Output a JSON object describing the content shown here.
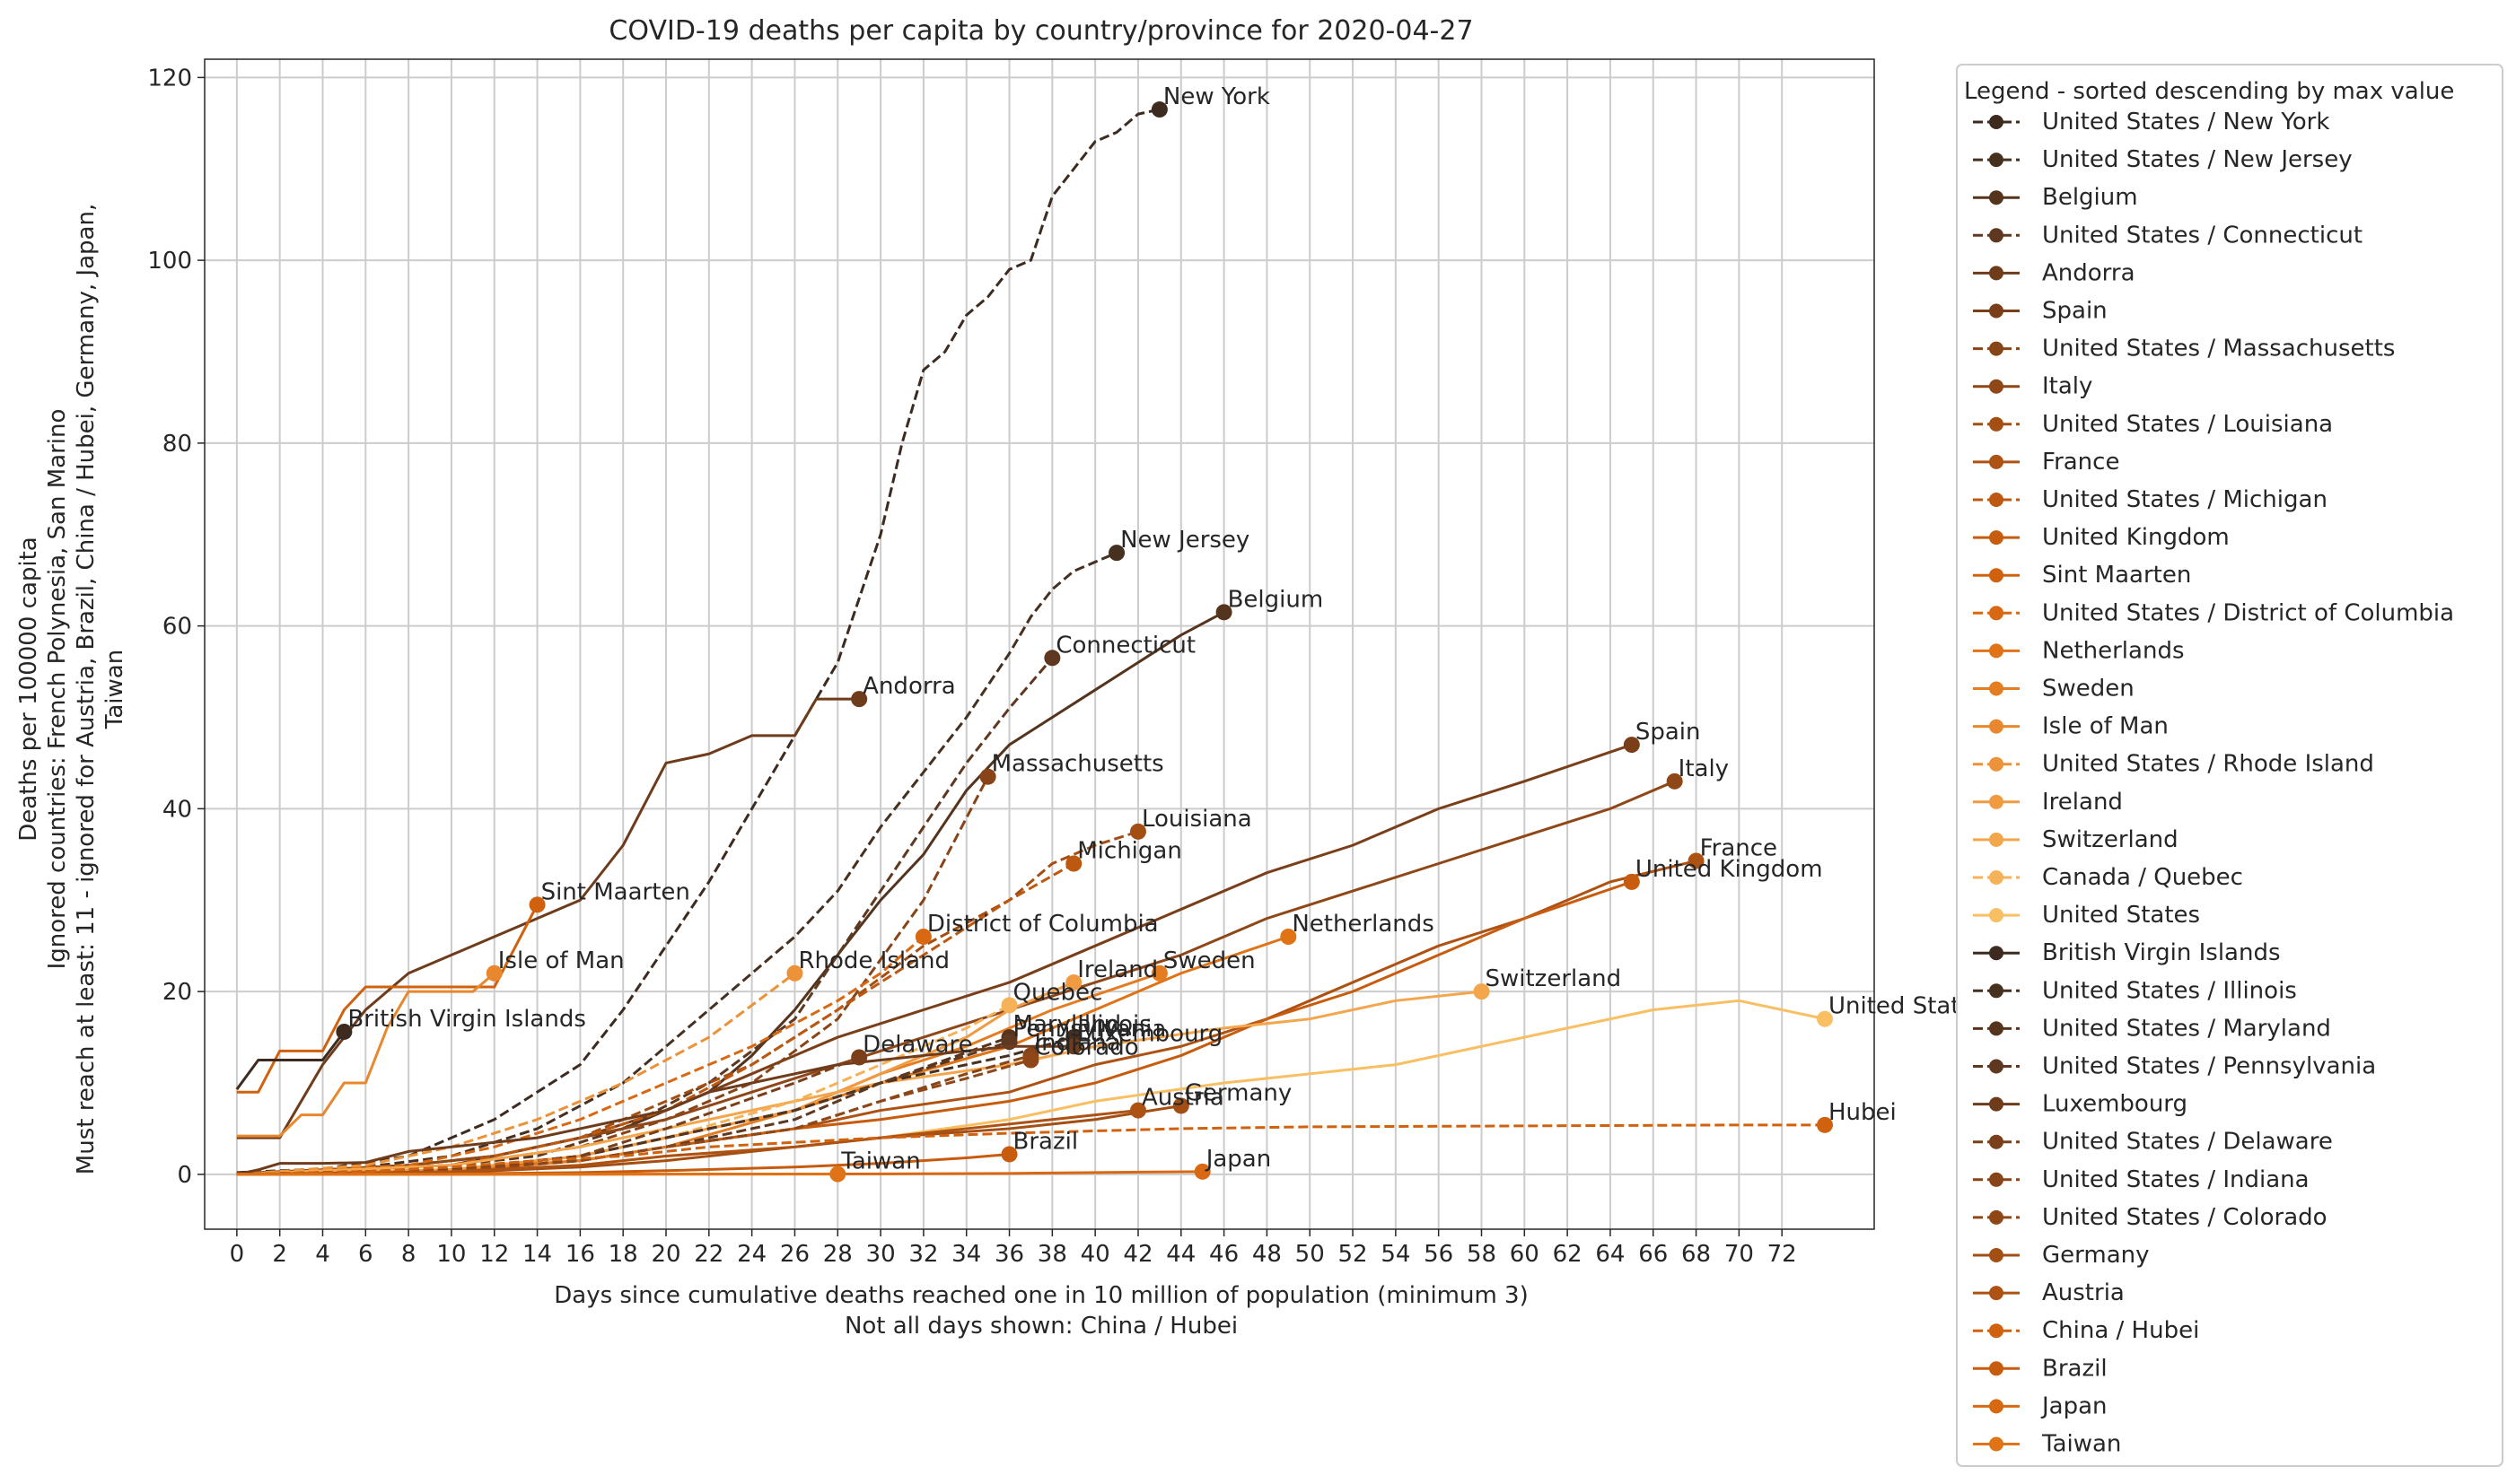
{
  "chart_data": {
    "type": "line",
    "title": "COVID-19 deaths per capita by country/province for 2020-04-27",
    "xlabel_lines": [
      "Days since cumulative deaths reached one in 10 million of population (minimum 3)",
      "Not all days shown: China / Hubei"
    ],
    "ylabel_lines": [
      "Deaths per 100000 capita",
      "Ignored countries: French Polynesia, San Marino",
      "Must reach at least: 11 - ignored for Austria, Brazil, China / Hubei, Germany, Japan,",
      "Taiwan"
    ],
    "xlim": [
      -1.5,
      76.3
    ],
    "ylim": [
      -6,
      122
    ],
    "x_ticks": [
      0,
      2,
      4,
      6,
      8,
      10,
      12,
      14,
      16,
      18,
      20,
      22,
      24,
      26,
      28,
      30,
      32,
      34,
      36,
      38,
      40,
      42,
      44,
      46,
      48,
      50,
      52,
      54,
      56,
      58,
      60,
      62,
      64,
      66,
      68,
      70,
      72
    ],
    "y_ticks": [
      0,
      20,
      40,
      60,
      80,
      100,
      120
    ],
    "grid": true,
    "legend_title": "Legend - sorted descending by max value",
    "legend_position": "outside right",
    "series": [
      {
        "name": "United States / New York",
        "label": "New York",
        "color": "#3d2b20",
        "dash": true,
        "x": [
          0,
          4,
          8,
          12,
          16,
          18,
          20,
          22,
          24,
          26,
          28,
          30,
          31,
          32,
          33,
          34,
          35,
          36,
          37,
          38,
          39,
          40,
          41,
          42,
          43
        ],
        "y": [
          0.2,
          0.6,
          2,
          6,
          12,
          18,
          25,
          32,
          40,
          48,
          56,
          70,
          80,
          88,
          90,
          94,
          96,
          99,
          100,
          107,
          110,
          113,
          114,
          116,
          116.5
        ]
      },
      {
        "name": "United States / New Jersey",
        "label": "New Jersey",
        "color": "#463020",
        "dash": true,
        "x": [
          0,
          6,
          10,
          14,
          18,
          22,
          26,
          28,
          30,
          32,
          34,
          36,
          37,
          38,
          39,
          40,
          41
        ],
        "y": [
          0.1,
          0.8,
          2,
          5,
          10,
          18,
          26,
          31,
          38,
          44,
          50,
          57,
          61,
          64,
          66,
          67,
          68
        ]
      },
      {
        "name": "Belgium",
        "label": "Belgium",
        "color": "#55341e",
        "dash": false,
        "x": [
          0,
          10,
          14,
          18,
          22,
          24,
          26,
          28,
          30,
          32,
          34,
          36,
          38,
          40,
          42,
          44,
          46
        ],
        "y": [
          0,
          1,
          3,
          5,
          9,
          13,
          18,
          24,
          30,
          35,
          42,
          47,
          50,
          53,
          56,
          59,
          61.5
        ]
      },
      {
        "name": "United States / Connecticut",
        "label": "Connecticut",
        "color": "#5e3820",
        "dash": true,
        "x": [
          0,
          8,
          14,
          18,
          22,
          26,
          28,
          30,
          32,
          34,
          36,
          38
        ],
        "y": [
          0,
          0.5,
          2,
          5,
          10,
          17,
          24,
          31,
          38,
          45,
          51,
          56.5
        ]
      },
      {
        "name": "Andorra",
        "label": "Andorra",
        "color": "#6e3b1b",
        "dash": false,
        "x": [
          0,
          2,
          4,
          6,
          8,
          10,
          12,
          14,
          16,
          18,
          20,
          22,
          24,
          26,
          27,
          28,
          29
        ],
        "y": [
          4,
          4,
          12,
          18,
          22,
          24,
          26,
          28,
          30,
          36,
          45,
          46,
          48,
          48,
          52,
          52,
          52
        ]
      },
      {
        "name": "Spain",
        "label": "Spain",
        "color": "#7a3f19",
        "dash": false,
        "x": [
          0,
          8,
          12,
          16,
          20,
          24,
          28,
          32,
          36,
          40,
          44,
          48,
          52,
          56,
          60,
          65
        ],
        "y": [
          0,
          1,
          2,
          4,
          7,
          11,
          15,
          18,
          21,
          25,
          29,
          33,
          36,
          40,
          43,
          47
        ]
      },
      {
        "name": "United States / Massachusetts",
        "label": "Massachusetts",
        "color": "#874418",
        "dash": true,
        "x": [
          0,
          10,
          16,
          20,
          24,
          28,
          32,
          35
        ],
        "y": [
          0,
          1,
          3,
          6,
          10,
          17,
          30,
          43.5
        ]
      },
      {
        "name": "Italy",
        "label": "Italy",
        "color": "#8f4717",
        "dash": false,
        "x": [
          0,
          4,
          8,
          12,
          16,
          20,
          24,
          28,
          32,
          36,
          40,
          44,
          48,
          52,
          56,
          60,
          64,
          67
        ],
        "y": [
          0.1,
          0.5,
          1,
          2,
          4,
          6,
          9,
          12,
          15,
          18,
          21,
          24,
          28,
          31,
          34,
          37,
          40,
          43
        ]
      },
      {
        "name": "United States / Louisiana",
        "label": "Louisiana",
        "color": "#a34f14",
        "dash": true,
        "x": [
          0,
          10,
          16,
          20,
          24,
          28,
          32,
          36,
          38,
          40,
          42
        ],
        "y": [
          0,
          1,
          4,
          8,
          12,
          18,
          25,
          30,
          34,
          36,
          37.5
        ]
      },
      {
        "name": "France",
        "label": "France",
        "color": "#ad5213",
        "dash": false,
        "x": [
          0,
          10,
          16,
          20,
          26,
          30,
          36,
          40,
          44,
          48,
          52,
          56,
          60,
          64,
          68
        ],
        "y": [
          0,
          0.5,
          1.5,
          3,
          5,
          7,
          9,
          12,
          14,
          17,
          21,
          25,
          28,
          32,
          34.3
        ]
      },
      {
        "name": "United States / Michigan",
        "label": "Michigan",
        "color": "#bc5810",
        "dash": true,
        "x": [
          0,
          10,
          16,
          20,
          24,
          28,
          32,
          36,
          39
        ],
        "y": [
          0,
          1,
          4,
          7,
          12,
          18,
          24,
          30,
          34
        ]
      },
      {
        "name": "United Kingdom",
        "label": "United Kingdom",
        "color": "#c75c0e",
        "dash": false,
        "x": [
          0,
          10,
          16,
          20,
          26,
          30,
          36,
          40,
          44,
          48,
          52,
          56,
          60,
          65
        ],
        "y": [
          0,
          0.5,
          1.5,
          3,
          5,
          6,
          8,
          10,
          13,
          17,
          20,
          24,
          28,
          32
        ]
      },
      {
        "name": "Sint Maarten",
        "label": "Sint Maarten",
        "color": "#d0610f",
        "dash": false,
        "x": [
          0,
          1,
          2,
          3,
          4,
          5,
          6,
          7,
          8,
          9,
          10,
          11,
          12,
          13,
          14
        ],
        "y": [
          9,
          9,
          13.5,
          13.5,
          13.5,
          18,
          20.5,
          20.5,
          20.5,
          20.5,
          20.5,
          20.5,
          20.5,
          25,
          29.5
        ]
      },
      {
        "name": "United States / District of Columbia",
        "label": "District of Columbia",
        "color": "#d86812",
        "dash": true,
        "x": [
          0,
          8,
          12,
          16,
          20,
          24,
          28,
          30,
          32
        ],
        "y": [
          0,
          1,
          3,
          6,
          10,
          14,
          19,
          22,
          26
        ]
      },
      {
        "name": "Netherlands",
        "label": "Netherlands",
        "color": "#e07316",
        "dash": false,
        "x": [
          0,
          10,
          16,
          20,
          26,
          30,
          36,
          40,
          44,
          49
        ],
        "y": [
          0,
          0.5,
          2,
          4,
          7,
          10,
          14,
          18,
          22,
          26
        ]
      },
      {
        "name": "Sweden",
        "label": "Sweden",
        "color": "#e47d21",
        "dash": false,
        "x": [
          0,
          10,
          16,
          20,
          26,
          30,
          34,
          38,
          43
        ],
        "y": [
          0,
          0.3,
          1.5,
          3,
          7,
          11,
          14,
          18,
          22
        ]
      },
      {
        "name": "Isle of Man",
        "label": "Isle of Man",
        "color": "#e8872d",
        "dash": false,
        "x": [
          0,
          1,
          2,
          3,
          4,
          5,
          6,
          7,
          8,
          9,
          10,
          11,
          12
        ],
        "y": [
          4.2,
          4.2,
          4.2,
          6.5,
          6.5,
          10,
          10,
          16,
          20,
          20,
          20,
          20,
          22
        ]
      },
      {
        "name": "United States / Rhode Island",
        "label": "Rhode Island",
        "color": "#ec9238",
        "dash": true,
        "x": [
          0,
          6,
          10,
          14,
          18,
          22,
          26
        ],
        "y": [
          0,
          1,
          3,
          6,
          10,
          15,
          22
        ]
      },
      {
        "name": "Ireland",
        "label": "Ireland",
        "color": "#f09b42",
        "dash": false,
        "x": [
          0,
          10,
          16,
          20,
          26,
          30,
          34,
          36,
          39
        ],
        "y": [
          0,
          0.5,
          2,
          4,
          7,
          11,
          15,
          18,
          21
        ]
      },
      {
        "name": "Switzerland",
        "label": "Switzerland",
        "color": "#f3a64c",
        "dash": false,
        "x": [
          0,
          10,
          16,
          20,
          26,
          30,
          36,
          40,
          46,
          50,
          54,
          58
        ],
        "y": [
          0,
          1,
          3,
          5,
          8,
          10,
          12,
          14,
          16,
          17,
          19,
          20
        ]
      },
      {
        "name": "Canada / Quebec",
        "label": "Quebec",
        "color": "#f6b258",
        "dash": true,
        "x": [
          0,
          10,
          16,
          20,
          26,
          30,
          34,
          36
        ],
        "y": [
          0,
          0.5,
          2,
          4,
          8,
          12,
          16,
          18.5
        ]
      },
      {
        "name": "United States",
        "label": "United States",
        "color": "#f8bf63",
        "dash": false,
        "x": [
          0,
          10,
          16,
          20,
          26,
          30,
          36,
          40,
          46,
          50,
          54,
          58,
          62,
          66,
          70,
          74
        ],
        "y": [
          0,
          0.2,
          1,
          2,
          3,
          4,
          6,
          8,
          10,
          11,
          12,
          14,
          16,
          18,
          19,
          17
        ]
      },
      {
        "name": "British Virgin Islands",
        "label": "British Virgin Islands",
        "color": "#3d2b20",
        "dash": false,
        "x": [
          0,
          1,
          2,
          3,
          4,
          5
        ],
        "y": [
          9.3,
          12.5,
          12.5,
          12.5,
          12.5,
          15.6
        ]
      },
      {
        "name": "United States / Illinois",
        "label": "Illinois",
        "color": "#463020",
        "dash": true,
        "x": [
          0,
          10,
          16,
          20,
          26,
          30,
          36,
          39
        ],
        "y": [
          0,
          0.5,
          2,
          4,
          7,
          10,
          13,
          15
        ]
      },
      {
        "name": "United States / Maryland",
        "label": "Maryland",
        "color": "#55341e",
        "dash": true,
        "x": [
          0,
          10,
          16,
          20,
          26,
          30,
          36
        ],
        "y": [
          0,
          0.5,
          2,
          4,
          7,
          10,
          15
        ]
      },
      {
        "name": "United States / Pennsylvania",
        "label": "Pennsylvania",
        "color": "#5e3820",
        "dash": true,
        "x": [
          0,
          10,
          16,
          20,
          26,
          30,
          34,
          36
        ],
        "y": [
          0,
          0.4,
          1.5,
          3,
          6,
          10,
          13,
          14.5
        ]
      },
      {
        "name": "Luxembourg",
        "label": "Luxembourg",
        "color": "#6e3b1b",
        "dash": false,
        "x": [
          0,
          1,
          2,
          4,
          6,
          8,
          10,
          12,
          14,
          16,
          18,
          20,
          22,
          24,
          26,
          28,
          30,
          32,
          34,
          36,
          38,
          39
        ],
        "y": [
          0,
          0.5,
          1.2,
          1.2,
          1.3,
          2.5,
          3,
          3.5,
          4,
          5,
          6,
          7,
          9,
          10,
          11,
          12,
          12.5,
          13,
          13.5,
          14,
          14,
          14
        ]
      },
      {
        "name": "United States / Delaware",
        "label": "Delaware",
        "color": "#7a3f19",
        "dash": true,
        "x": [
          0,
          10,
          16,
          20,
          26,
          29
        ],
        "y": [
          0,
          0.5,
          2,
          5,
          10,
          12.8
        ]
      },
      {
        "name": "United States / Indiana",
        "label": "Indiana",
        "color": "#874418",
        "dash": true,
        "x": [
          0,
          10,
          16,
          20,
          26,
          30,
          34,
          37
        ],
        "y": [
          0,
          0.4,
          1.5,
          3,
          5,
          8,
          11,
          13
        ]
      },
      {
        "name": "United States / Colorado",
        "label": "Colorado",
        "color": "#8f4717",
        "dash": true,
        "x": [
          0,
          10,
          16,
          20,
          26,
          30,
          34,
          37
        ],
        "y": [
          0,
          0.4,
          1.5,
          3,
          5,
          8,
          10.5,
          12.5
        ]
      },
      {
        "name": "Germany",
        "label": "Germany",
        "color": "#a34f14",
        "dash": false,
        "x": [
          0,
          10,
          16,
          20,
          26,
          30,
          36,
          40,
          44
        ],
        "y": [
          0,
          0.2,
          0.8,
          1.5,
          3,
          4,
          5,
          6,
          7.5
        ]
      },
      {
        "name": "Austria",
        "label": "Austria",
        "color": "#ad5213",
        "dash": false,
        "x": [
          0,
          10,
          16,
          20,
          26,
          30,
          34,
          38,
          40,
          42
        ],
        "y": [
          0,
          0.3,
          1,
          2,
          3,
          4,
          5,
          6,
          6.5,
          7
        ]
      },
      {
        "name": "China / Hubei",
        "label": "Hubei",
        "color": "#d0610f",
        "dash": true,
        "x": [
          0,
          6,
          10,
          14,
          18,
          22,
          26,
          30,
          36,
          44,
          50,
          60,
          70,
          74
        ],
        "y": [
          0,
          0.3,
          0.8,
          1.5,
          2,
          3,
          3.5,
          4,
          4.5,
          5,
          5.2,
          5.3,
          5.4,
          5.4
        ]
      },
      {
        "name": "Brazil",
        "label": "Brazil",
        "color": "#c75c0e",
        "dash": false,
        "x": [
          0,
          10,
          16,
          20,
          26,
          30,
          34,
          36
        ],
        "y": [
          0,
          0.05,
          0.2,
          0.4,
          0.8,
          1.2,
          1.8,
          2.2
        ]
      },
      {
        "name": "Japan",
        "label": "Japan",
        "color": "#d86812",
        "dash": false,
        "x": [
          0,
          10,
          20,
          30,
          36,
          40,
          45
        ],
        "y": [
          0,
          0,
          0.02,
          0.05,
          0.1,
          0.2,
          0.3
        ]
      },
      {
        "name": "Taiwan",
        "label": "Taiwan",
        "color": "#e07316",
        "dash": false,
        "x": [
          0,
          10,
          20,
          28
        ],
        "y": [
          0,
          0,
          0.02,
          0.03
        ]
      }
    ]
  }
}
